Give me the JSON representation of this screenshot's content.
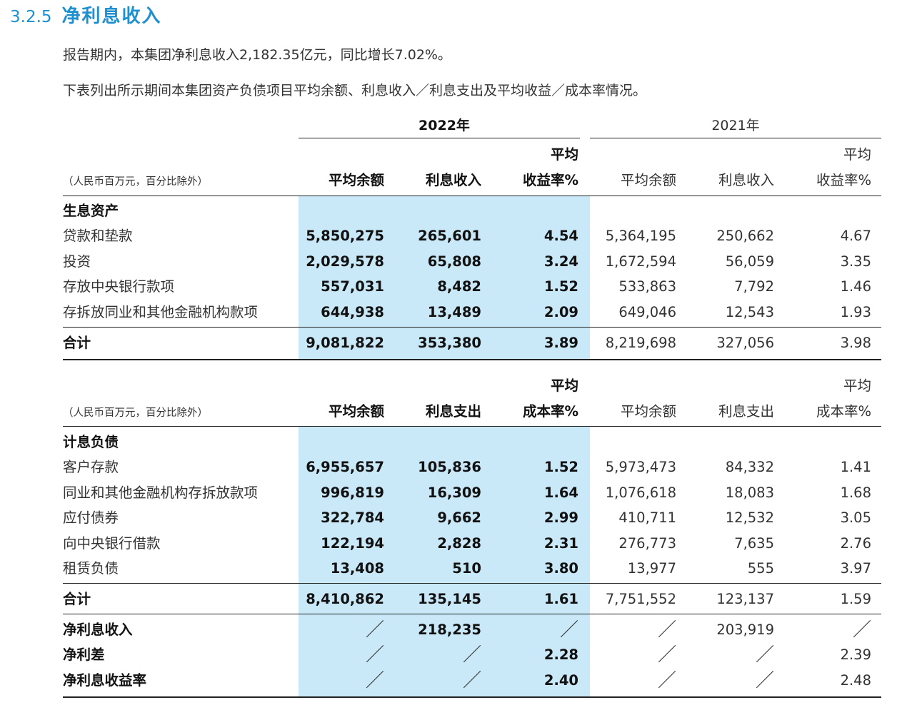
{
  "section": {
    "number": "3.2.5",
    "title": "净利息收入"
  },
  "paragraphs": [
    "报告期内，本集团净利息收入2,182.35亿元，同比增长7.02%。",
    "下表列出所示期间本集团资产负债项目平均余额、利息收入／利息支出及平均收益／成本率情况。"
  ],
  "years": {
    "y2022": "2022年",
    "y2021": "2021年"
  },
  "assets": {
    "note": "（人民币百万元，百分比除外）",
    "headers": {
      "avg_balance": "平均余额",
      "interest": "利息收入",
      "rate_line1": "平均",
      "rate_line2": "收益率%"
    },
    "group_label": "生息资产",
    "rows": [
      {
        "label": "贷款和垫款",
        "v": [
          "5,850,275",
          "265,601",
          "4.54",
          "5,364,195",
          "250,662",
          "4.67"
        ]
      },
      {
        "label": "投资",
        "v": [
          "2,029,578",
          "65,808",
          "3.24",
          "1,672,594",
          "56,059",
          "3.35"
        ]
      },
      {
        "label": "存放中央银行款项",
        "v": [
          "557,031",
          "8,482",
          "1.52",
          "533,863",
          "7,792",
          "1.46"
        ]
      },
      {
        "label": "存拆放同业和其他金融机构款项",
        "v": [
          "644,938",
          "13,489",
          "2.09",
          "649,046",
          "12,543",
          "1.93"
        ]
      }
    ],
    "total": {
      "label": "合计",
      "v": [
        "9,081,822",
        "353,380",
        "3.89",
        "8,219,698",
        "327,056",
        "3.98"
      ]
    }
  },
  "liabilities": {
    "note": "（人民币百万元，百分比除外）",
    "headers": {
      "avg_balance": "平均余额",
      "interest": "利息支出",
      "rate_line1": "平均",
      "rate_line2": "成本率%"
    },
    "group_label": "计息负债",
    "rows": [
      {
        "label": "客户存款",
        "v": [
          "6,955,657",
          "105,836",
          "1.52",
          "5,973,473",
          "84,332",
          "1.41"
        ]
      },
      {
        "label": "同业和其他金融机构存拆放款项",
        "v": [
          "996,819",
          "16,309",
          "1.64",
          "1,076,618",
          "18,083",
          "1.68"
        ]
      },
      {
        "label": "应付债券",
        "v": [
          "322,784",
          "9,662",
          "2.99",
          "410,711",
          "12,532",
          "3.05"
        ]
      },
      {
        "label": "向中央银行借款",
        "v": [
          "122,194",
          "2,828",
          "2.31",
          "276,773",
          "7,635",
          "2.76"
        ]
      },
      {
        "label": "租赁负债",
        "v": [
          "13,408",
          "510",
          "3.80",
          "13,977",
          "555",
          "3.97"
        ]
      }
    ],
    "total": {
      "label": "合计",
      "v": [
        "8,410,862",
        "135,145",
        "1.61",
        "7,751,552",
        "123,137",
        "1.59"
      ]
    }
  },
  "summary": [
    {
      "label": "净利息收入",
      "v": [
        "／",
        "218,235",
        "／",
        "／",
        "203,919",
        "／"
      ]
    },
    {
      "label": "净利差",
      "v": [
        "／",
        "／",
        "2.28",
        "／",
        "／",
        "2.39"
      ]
    },
    {
      "label": "净利息收益率",
      "v": [
        "／",
        "／",
        "2.40",
        "／",
        "／",
        "2.48"
      ]
    }
  ]
}
